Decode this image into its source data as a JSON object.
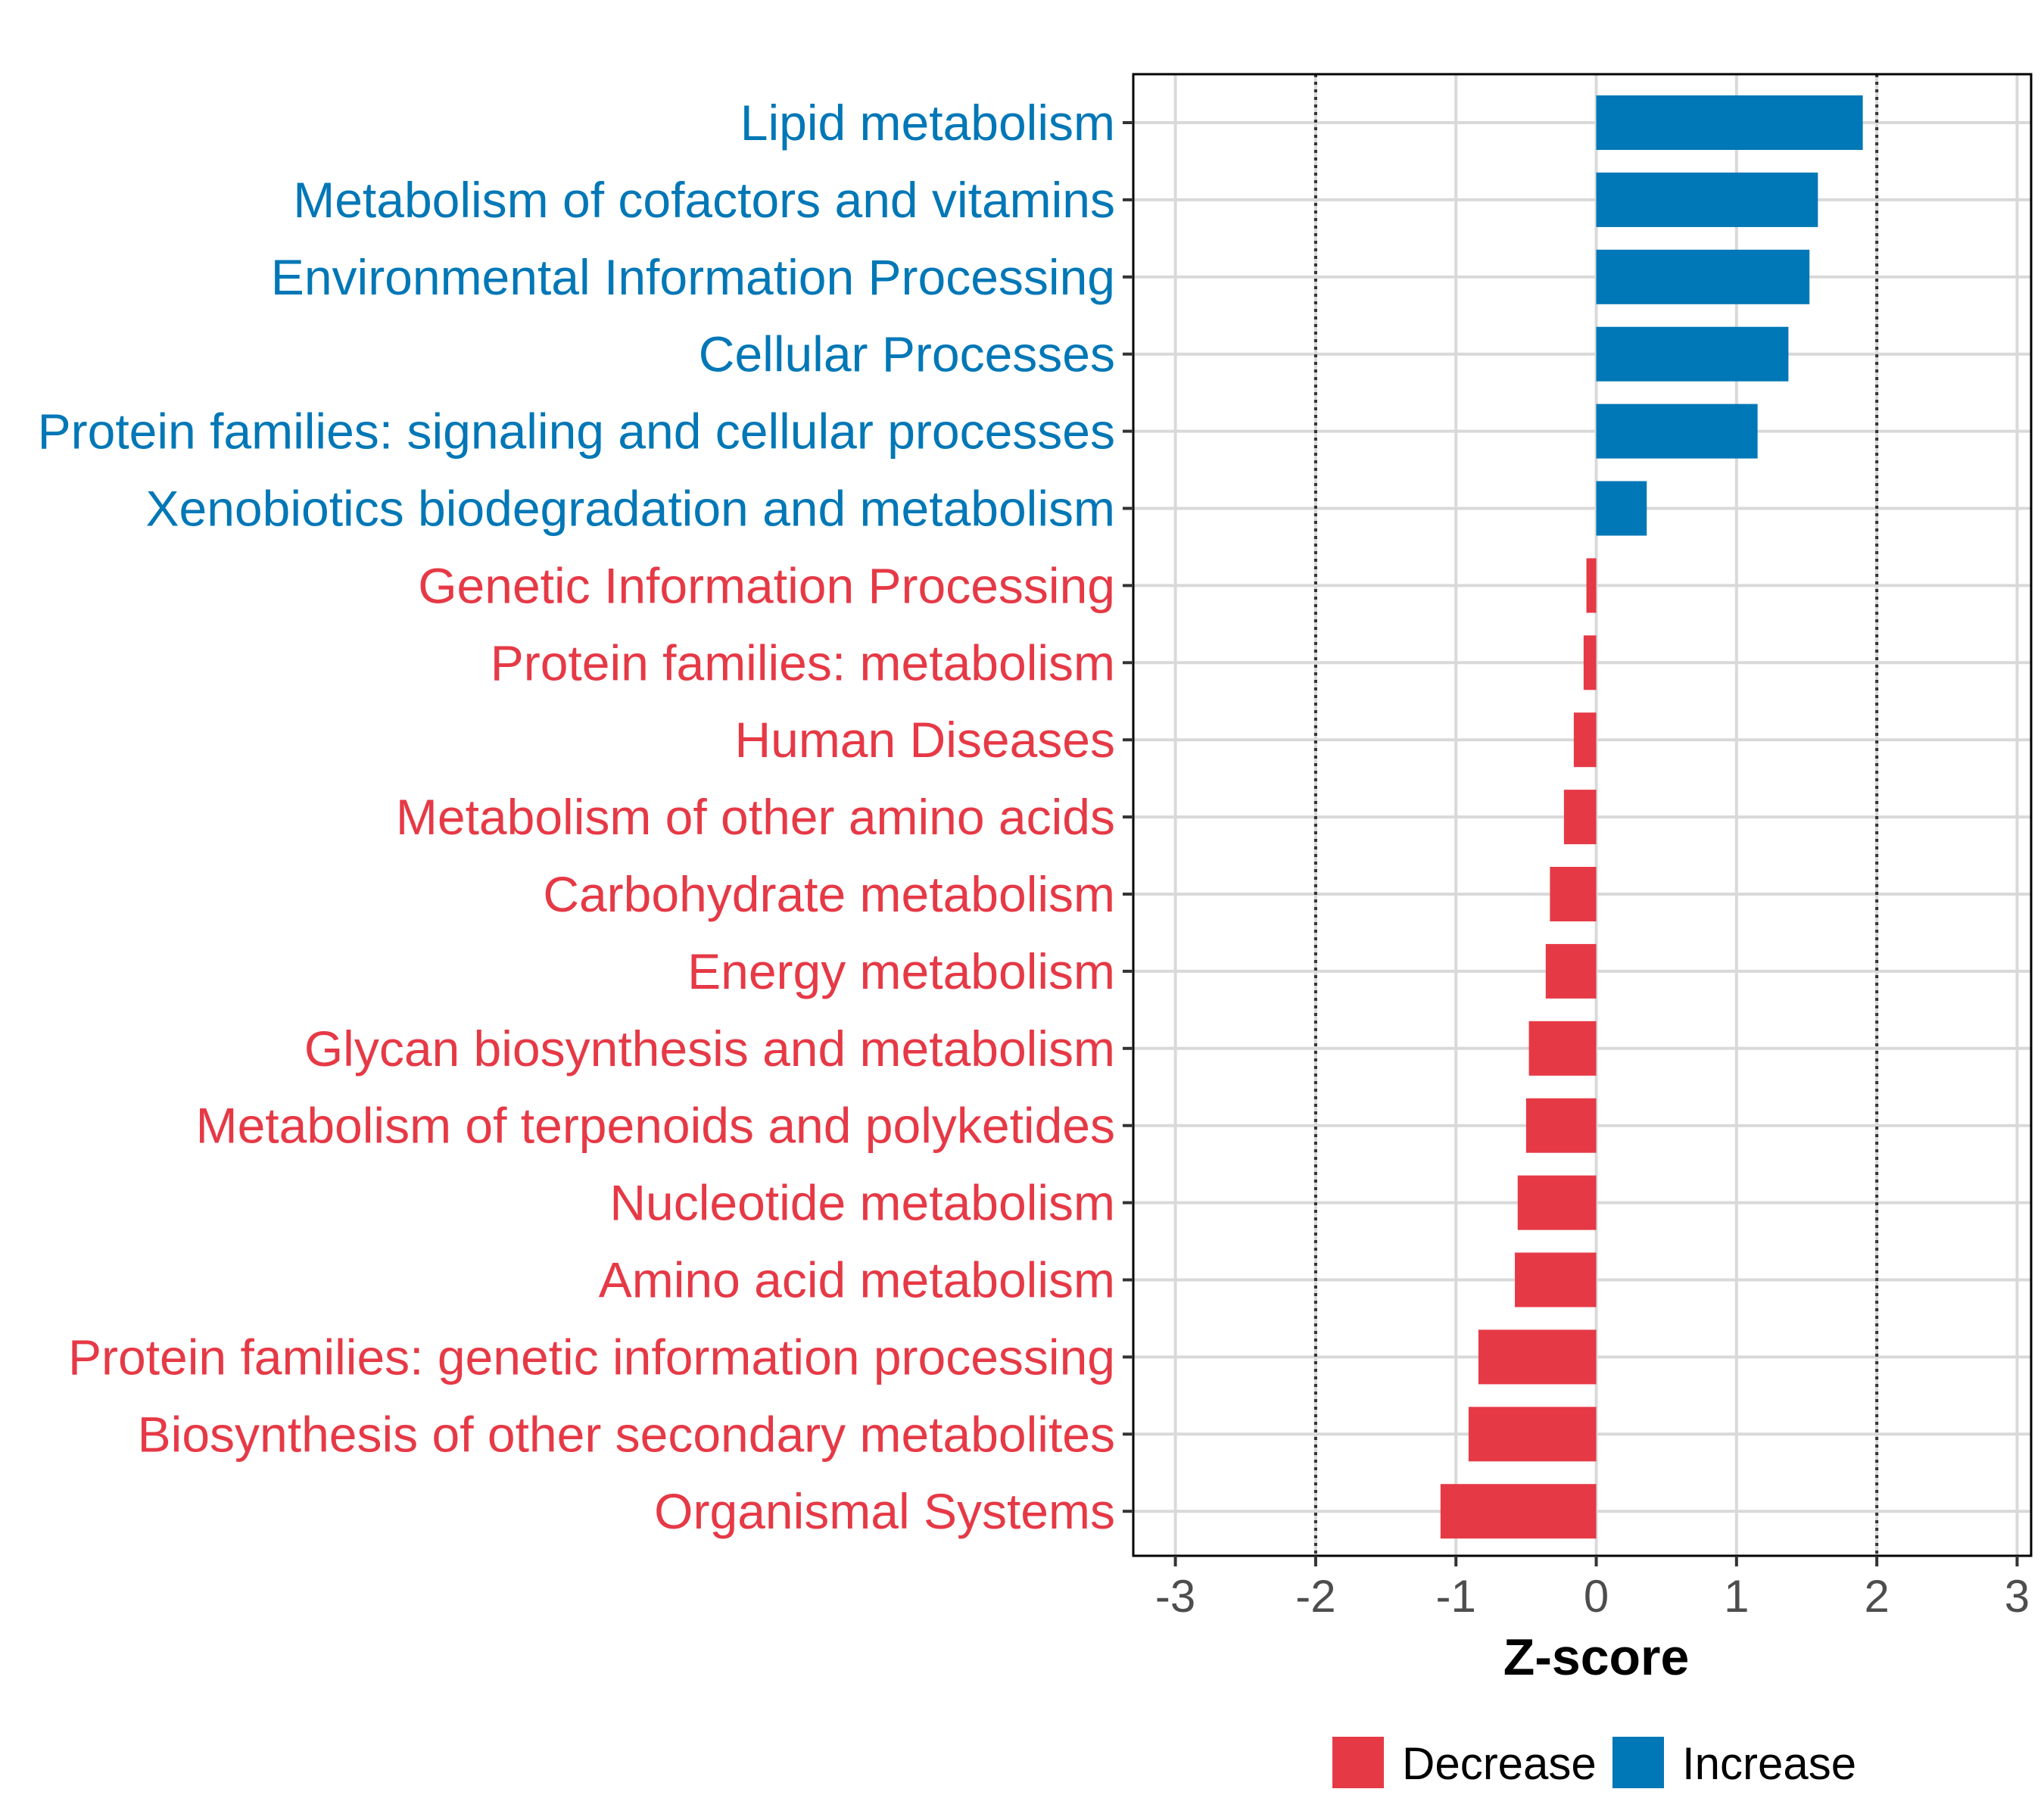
{
  "chart_data": {
    "type": "bar",
    "orientation": "horizontal",
    "xlabel": "Z-score",
    "xlim": [
      -3.3,
      3.1
    ],
    "xticks": [
      -3,
      -2,
      -1,
      0,
      1,
      2,
      3
    ],
    "xtick_labels": [
      "-3",
      "-2",
      "-1",
      "0",
      "1",
      "2",
      "3"
    ],
    "reference_lines": [
      -2,
      2
    ],
    "grid": true,
    "categories": [
      "Lipid metabolism",
      "Metabolism of cofactors and vitamins",
      "Environmental Information Processing",
      "Cellular Processes",
      "Protein families: signaling and cellular processes",
      "Xenobiotics biodegradation and metabolism",
      "Genetic Information Processing",
      "Protein families: metabolism",
      "Human Diseases",
      "Metabolism of other amino acids",
      "Carbohydrate metabolism",
      "Energy metabolism",
      "Glycan biosynthesis and metabolism",
      "Metabolism of terpenoids and polyketides",
      "Nucleotide metabolism",
      "Amino acid metabolism",
      "Protein families: genetic information processing",
      "Biosynthesis of other secondary metabolites",
      "Organismal Systems"
    ],
    "values": [
      1.9,
      1.58,
      1.52,
      1.37,
      1.15,
      0.36,
      -0.07,
      -0.09,
      -0.16,
      -0.23,
      -0.33,
      -0.36,
      -0.48,
      -0.5,
      -0.56,
      -0.58,
      -0.84,
      -0.91,
      -1.11
    ],
    "groups": [
      "Increase",
      "Increase",
      "Increase",
      "Increase",
      "Increase",
      "Increase",
      "Decrease",
      "Decrease",
      "Decrease",
      "Decrease",
      "Decrease",
      "Decrease",
      "Decrease",
      "Decrease",
      "Decrease",
      "Decrease",
      "Decrease",
      "Decrease",
      "Decrease"
    ],
    "legend": {
      "position": "bottom",
      "entries": [
        {
          "label": "Decrease",
          "color": "#E63946"
        },
        {
          "label": "Increase",
          "color": "#0077B6"
        }
      ]
    },
    "colors": {
      "Decrease": "#E63946",
      "Increase": "#0077B6"
    }
  }
}
